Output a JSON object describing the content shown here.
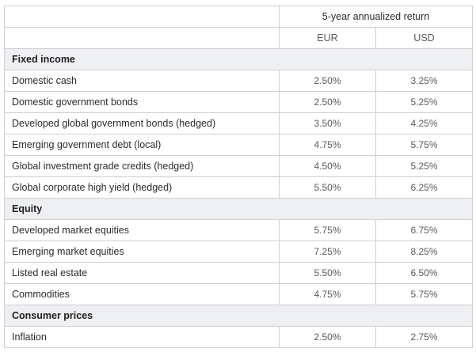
{
  "header": {
    "super_label": "5-year annualized return",
    "columns": [
      "EUR",
      "USD"
    ]
  },
  "sections": [
    {
      "title": "Fixed income",
      "rows": [
        {
          "label": "Domestic cash",
          "eur": "2.50%",
          "usd": "3.25%"
        },
        {
          "label": "Domestic government bonds",
          "eur": "2.50%",
          "usd": "5.25%"
        },
        {
          "label": "Developed global government bonds (hedged)",
          "eur": "3.50%",
          "usd": "4.25%"
        },
        {
          "label": "Emerging government debt (local)",
          "eur": "4.75%",
          "usd": "5.75%"
        },
        {
          "label": "Global investment grade credits (hedged)",
          "eur": "4.50%",
          "usd": "5.25%"
        },
        {
          "label": "Global corporate high yield (hedged)",
          "eur": "5.50%",
          "usd": "6.25%"
        }
      ]
    },
    {
      "title": "Equity",
      "rows": [
        {
          "label": "Developed market equities",
          "eur": "5.75%",
          "usd": "6.75%"
        },
        {
          "label": "Emerging market equities",
          "eur": "7.25%",
          "usd": "8.25%"
        },
        {
          "label": "Listed real estate",
          "eur": "5.50%",
          "usd": "6.50%"
        },
        {
          "label": "Commodities",
          "eur": "4.75%",
          "usd": "5.75%"
        }
      ]
    },
    {
      "title": "Consumer prices",
      "rows": [
        {
          "label": "Inflation",
          "eur": "2.50%",
          "usd": "2.75%"
        }
      ]
    }
  ]
}
